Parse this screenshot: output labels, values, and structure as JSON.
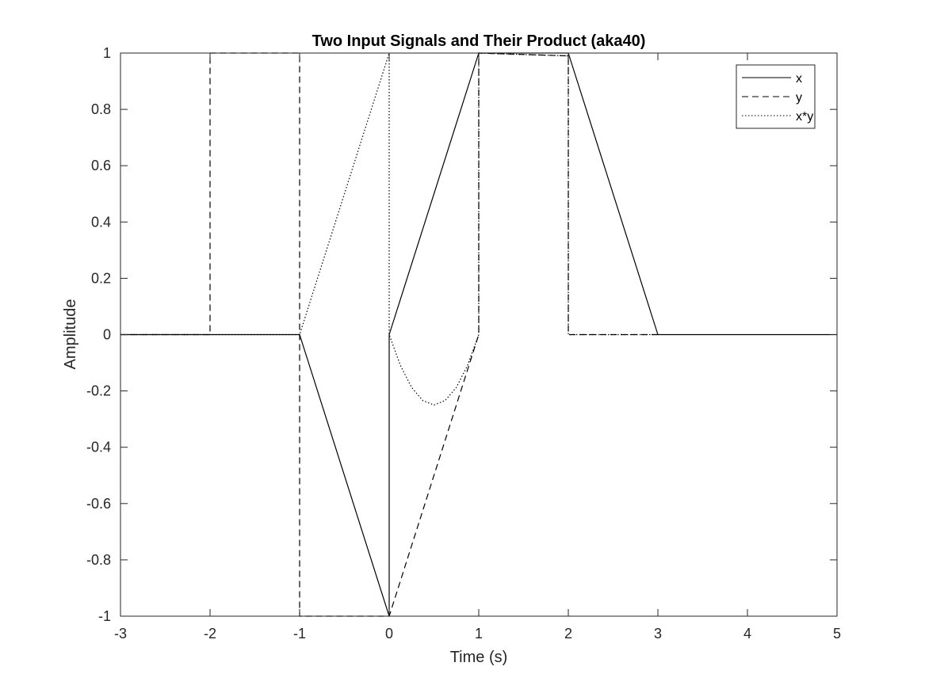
{
  "chart_data": {
    "type": "line",
    "title": "Two Input Signals and Their Product (aka40)",
    "xlabel": "Time (s)",
    "ylabel": "Amplitude",
    "xlim": [
      -3,
      5
    ],
    "ylim": [
      -1,
      1
    ],
    "xticks": [
      -3,
      -2,
      -1,
      0,
      1,
      2,
      3,
      4,
      5
    ],
    "xtick_labels": [
      "-3",
      "-2",
      "-1",
      "0",
      "1",
      "2",
      "3",
      "4",
      "5"
    ],
    "yticks": [
      -1,
      -0.8,
      -0.6,
      -0.4,
      -0.2,
      0,
      0.2,
      0.4,
      0.6,
      0.8,
      1
    ],
    "ytick_labels": [
      "-1",
      "-0.8",
      "-0.6",
      "-0.4",
      "-0.2",
      "0",
      "0.2",
      "0.4",
      "0.6",
      "0.8",
      "1"
    ],
    "grid": false,
    "legend_position": "top-right",
    "series": [
      {
        "name": "x",
        "style": "solid",
        "points": [
          [
            -3,
            0
          ],
          [
            -1,
            0
          ],
          [
            0,
            -1
          ],
          [
            0,
            0
          ],
          [
            1,
            1
          ],
          [
            2,
            1
          ],
          [
            3,
            0
          ],
          [
            5,
            0
          ]
        ]
      },
      {
        "name": "y",
        "style": "dashed",
        "points": [
          [
            -3,
            0
          ],
          [
            -2,
            0
          ],
          [
            -2,
            1
          ],
          [
            -1,
            1
          ],
          [
            -1,
            -1
          ],
          [
            0,
            -1
          ],
          [
            1,
            0
          ],
          [
            1,
            1
          ],
          [
            2,
            0.99
          ],
          [
            2,
            0
          ],
          [
            3,
            0
          ]
        ]
      },
      {
        "name": "x*y",
        "style": "dotted",
        "points": [
          [
            -3,
            0
          ],
          [
            -1,
            0
          ],
          [
            0,
            1
          ],
          [
            0,
            0
          ],
          [
            0.125,
            -0.109
          ],
          [
            0.25,
            -0.1875
          ],
          [
            0.375,
            -0.234
          ],
          [
            0.5,
            -0.25
          ],
          [
            0.625,
            -0.234
          ],
          [
            0.75,
            -0.1875
          ],
          [
            0.875,
            -0.109
          ],
          [
            1,
            0
          ],
          [
            1,
            1
          ],
          [
            2,
            0.99
          ],
          [
            2,
            0
          ],
          [
            3,
            0
          ]
        ]
      }
    ],
    "colors": {
      "line": "#000000",
      "axes": "#262626"
    }
  }
}
